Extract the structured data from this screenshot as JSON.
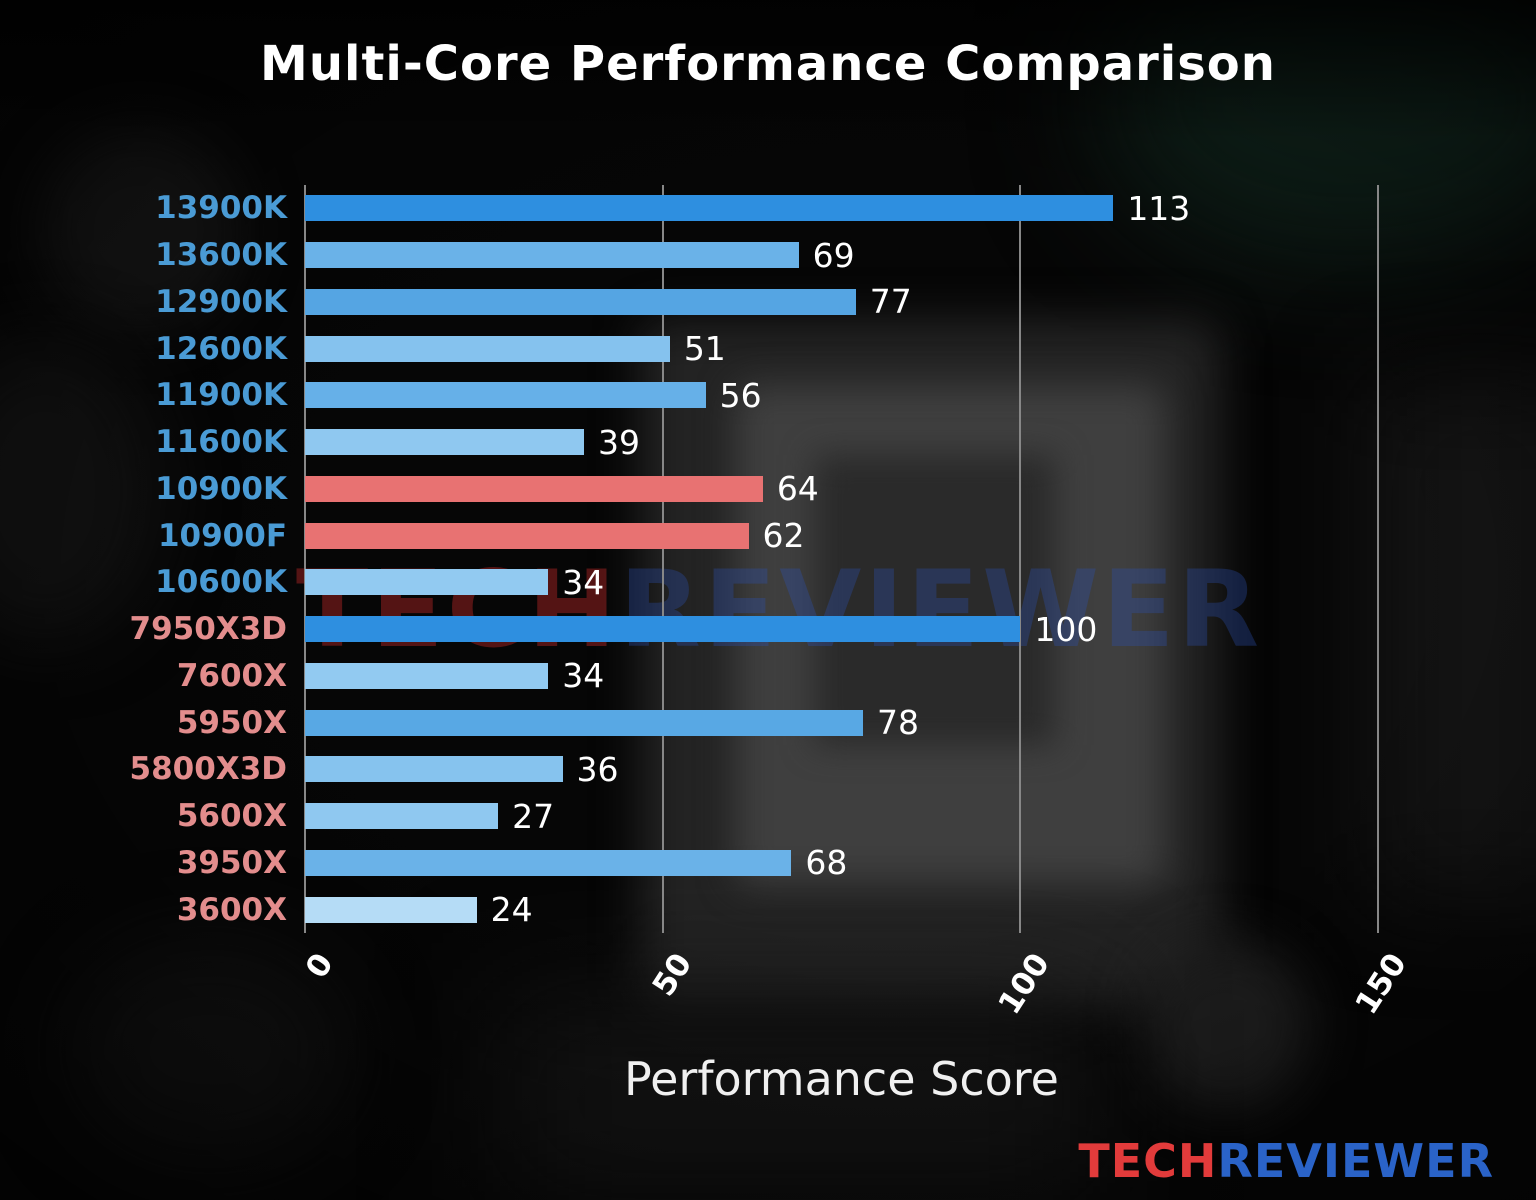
{
  "title": "Multi-Core Performance Comparison",
  "xlabel": "Performance Score",
  "watermark": {
    "tech": "TECH",
    "reviewer": "REVIEWER"
  },
  "logo": {
    "tech": "TECH",
    "reviewer": "REVIEWER"
  },
  "colors": {
    "intel_label": "#4a9bd5",
    "amd_label": "#e38d8d",
    "value_label": "#ffffff",
    "grid": "#878787",
    "accent_red": "#e23b3b",
    "accent_blue": "#2a63c8"
  },
  "chart_data": {
    "type": "bar",
    "orientation": "horizontal",
    "title": "Multi-Core Performance Comparison",
    "xlabel": "Performance Score",
    "xlim": [
      0,
      150
    ],
    "xticks": [
      0,
      50,
      100,
      150
    ],
    "grid": true,
    "legend": false,
    "categories": [
      "13900K",
      "13600K",
      "12900K",
      "12600K",
      "11900K",
      "11600K",
      "10900K",
      "10900F",
      "10600K",
      "7950X3D",
      "7600X",
      "5950X",
      "5800X3D",
      "5600X",
      "3950X",
      "3600X"
    ],
    "values": [
      113,
      69,
      77,
      51,
      56,
      39,
      64,
      62,
      34,
      100,
      34,
      78,
      36,
      27,
      68,
      24
    ],
    "bar_colors": [
      "#2e8fe0",
      "#6ab2e8",
      "#55a5e3",
      "#85c2ee",
      "#66b0e8",
      "#8fc8f0",
      "#e87272",
      "#e87272",
      "#92caf1",
      "#2e8fe0",
      "#92caf1",
      "#58a8e4",
      "#86c3ee",
      "#8fc8f0",
      "#6ab2e8",
      "#b5dcf6"
    ],
    "label_colors": [
      "#4a9bd5",
      "#4a9bd5",
      "#4a9bd5",
      "#4a9bd5",
      "#4a9bd5",
      "#4a9bd5",
      "#4a9bd5",
      "#4a9bd5",
      "#4a9bd5",
      "#e38d8d",
      "#e38d8d",
      "#e38d8d",
      "#e38d8d",
      "#e38d8d",
      "#e38d8d",
      "#e38d8d"
    ]
  }
}
